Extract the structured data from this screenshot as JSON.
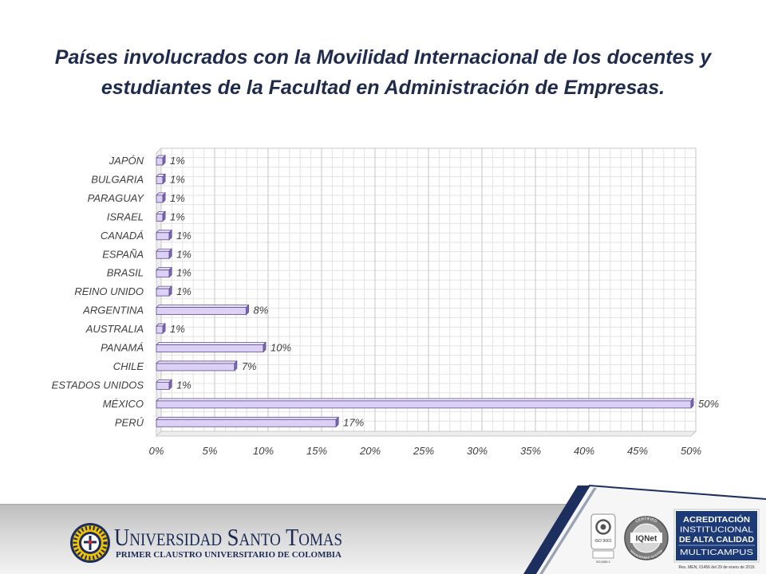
{
  "chart_data": {
    "type": "bar",
    "orientation": "horizontal",
    "style": "3d",
    "title_lines": [
      "Países involucrados con la Movilidad Internacional de los docentes y",
      "estudiantes de la Facultad en Administración de Empresas."
    ],
    "categories": [
      "JAPÓN",
      "BULGARIA",
      "PARAGUAY",
      "ISRAEL",
      "CANADÁ",
      "ESPAÑA",
      "BRASIL",
      "REINO UNIDO",
      "ARGENTINA",
      "AUSTRALIA",
      "PANAMÁ",
      "CHILE",
      "ESTADOS UNIDOS",
      "MÉXICO",
      "PERÚ"
    ],
    "values": [
      0.6,
      0.6,
      0.6,
      0.6,
      1.2,
      1.2,
      1.2,
      1.2,
      8.4,
      0.6,
      10,
      7.3,
      1.2,
      50,
      16.8
    ],
    "data_labels": [
      "1%",
      "1%",
      "1%",
      "1%",
      "1%",
      "1%",
      "1%",
      "1%",
      "8%",
      "1%",
      "10%",
      "7%",
      "1%",
      "50%",
      "17%"
    ],
    "x_ticks": [
      "0%",
      "5%",
      "10%",
      "15%",
      "20%",
      "25%",
      "30%",
      "35%",
      "40%",
      "45%",
      "50%"
    ],
    "xlim": [
      0,
      50
    ],
    "xlabel": "",
    "ylabel": "",
    "grid": true,
    "legend": "none",
    "colors": {
      "bar_front": "#dcd0f4",
      "bar_top": "#ece6fb",
      "bar_side": "#7b68b3",
      "bar_edge": "#5d4b93"
    }
  },
  "footer": {
    "university_name": "Universidad Santo Tomas",
    "university_tagline": "PRIMER CLAUSTRO UNIVERSITARIO DE COLOMBIA",
    "logos": {
      "seal_icon": "university-seal-icon",
      "iso": {
        "label": "ISO 9001",
        "code": "SC4289-1"
      },
      "iqnet": {
        "top": "CERTIFIED",
        "center": "IQNet",
        "bottom": "MANAGEMENT SYSTEM"
      }
    },
    "accreditation": {
      "lines": [
        "ACREDITACIÓN",
        "INSTITUCIONAL",
        "DE ALTA CALIDAD",
        "MULTICAMPUS"
      ],
      "resolution": "Res. MEN, 01456 del 29 de enero de 2016"
    },
    "colors": {
      "navy": "#1d2f5f",
      "accreditation_box": "#1c3a78"
    }
  }
}
